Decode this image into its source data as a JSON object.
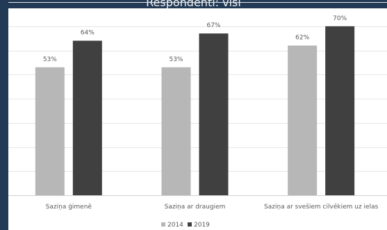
{
  "chart_data": {
    "type": "bar",
    "title": "Respondenti: visi",
    "categories": [
      "Saziņa ģimenē",
      "Saziņa ar draugiem",
      "Saziņa ar svešiem cilvēkiem uz ielas"
    ],
    "series": [
      {
        "name": "2014",
        "values": [
          53,
          53,
          62
        ],
        "labels": [
          "53%",
          "53%",
          "62%"
        ],
        "color": "#b7b7b7"
      },
      {
        "name": "2019",
        "values": [
          64,
          67,
          70
        ],
        "labels": [
          "64%",
          "67%",
          "70%"
        ],
        "color": "#404040"
      }
    ],
    "ylim": [
      0,
      80
    ],
    "grid": true,
    "legend": "bottom"
  },
  "colors": {
    "background": "#233a56",
    "grid": "#e6e6e6",
    "text": "#595959"
  }
}
